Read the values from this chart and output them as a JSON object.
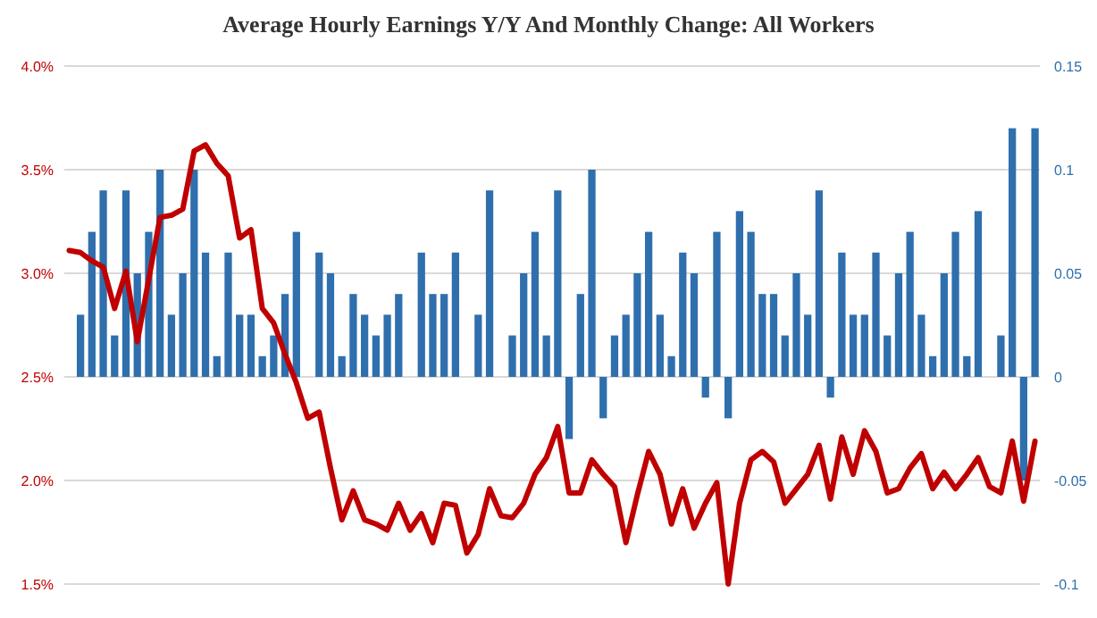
{
  "chart_data": {
    "type": "bar",
    "title": "Average Hourly Earnings Y/Y And Monthly Change: All Workers",
    "categories": [
      null,
      null,
      null,
      null,
      null,
      null,
      null,
      null,
      null,
      null,
      null,
      null,
      null,
      null,
      null,
      null,
      null,
      null,
      null,
      null,
      null,
      null,
      null,
      null,
      null,
      null,
      null,
      null,
      null,
      null,
      null,
      null,
      null,
      null,
      null,
      null,
      null,
      null,
      null,
      null,
      null,
      null,
      null,
      null,
      null,
      null,
      null,
      null,
      null,
      null,
      null,
      null,
      null,
      null,
      null,
      null,
      null,
      null,
      null,
      null,
      null,
      null,
      null,
      null,
      null,
      null,
      null,
      null,
      null,
      null,
      null,
      null,
      null,
      null,
      null,
      null,
      null,
      null,
      null,
      null,
      null,
      null,
      null,
      null,
      null,
      null
    ],
    "series": [
      {
        "axis": "y2",
        "color": "#2f6fad",
        "values": [
          0,
          0.03,
          0.07,
          0.09,
          0.02,
          0.09,
          0.05,
          0.07,
          0.1,
          0.03,
          0.05,
          0.1,
          0.06,
          0.01,
          0.06,
          0.03,
          0.03,
          0.01,
          0.02,
          0.04,
          0.07,
          0,
          0.06,
          0.05,
          0.01,
          0.04,
          0.03,
          0.02,
          0.03,
          0.04,
          0,
          0.06,
          0.04,
          0.04,
          0.06,
          0,
          0.03,
          0.09,
          0,
          0.02,
          0.05,
          0.07,
          0.02,
          0.09,
          -0.03,
          0.04,
          0.1,
          -0.02,
          0.02,
          0.03,
          0.05,
          0.07,
          0.03,
          0.01,
          0.06,
          0.05,
          -0.01,
          0.07,
          -0.02,
          0.08,
          0.07,
          0.04,
          0.04,
          0.02,
          0.05,
          0.03,
          0.09,
          -0.01,
          0.06,
          0.03,
          0.03,
          0.06,
          0.02,
          0.05,
          0.07,
          0.03,
          0.01,
          0.05,
          0.07,
          0.01,
          0.08,
          0,
          0.02,
          0.12,
          -0.05,
          0.12
        ]
      },
      {
        "type": "line",
        "color": "#c00000",
        "values": [
          3.11,
          3.1,
          3.06,
          3.03,
          2.83,
          3.01,
          2.67,
          2.97,
          3.27,
          3.28,
          3.31,
          3.59,
          3.62,
          3.53,
          3.47,
          3.17,
          3.21,
          2.83,
          2.76,
          2.61,
          2.47,
          2.3,
          2.33,
          2.06,
          1.81,
          1.95,
          1.81,
          1.79,
          1.76,
          1.89,
          1.76,
          1.84,
          1.7,
          1.89,
          1.88,
          1.65,
          1.74,
          1.96,
          1.83,
          1.82,
          1.89,
          2.03,
          2.11,
          2.26,
          1.94,
          1.94,
          2.1,
          2.03,
          1.97,
          1.7,
          1.93,
          2.14,
          2.03,
          1.79,
          1.96,
          1.77,
          1.89,
          1.99,
          1.5,
          1.89,
          2.1,
          2.14,
          2.09,
          1.89,
          1.96,
          2.03,
          2.17,
          1.91,
          2.21,
          2.03,
          2.24,
          2.14,
          1.94,
          1.96,
          2.06,
          2.13,
          1.96,
          2.04,
          1.96,
          2.03,
          2.11,
          1.97,
          1.94,
          2.19,
          1.9,
          2.19
        ]
      }
    ],
    "ylim": [
      1.5,
      4.0
    ],
    "yticks": [
      {
        "value": 1.5,
        "label": "1.5%"
      },
      {
        "value": 2.0,
        "label": "2.0%"
      },
      {
        "value": 2.5,
        "label": "2.5%"
      },
      {
        "value": 3.0,
        "label": "3.0%"
      },
      {
        "value": 3.5,
        "label": "3.5%"
      },
      {
        "value": 4.0,
        "label": "4.0%"
      }
    ],
    "y2lim": [
      -0.1,
      0.15
    ],
    "y2ticks": [
      -0.1,
      -0.05,
      0,
      0.05,
      0.1,
      0.15
    ],
    "grid": "y",
    "tick_labels": "y"
  }
}
